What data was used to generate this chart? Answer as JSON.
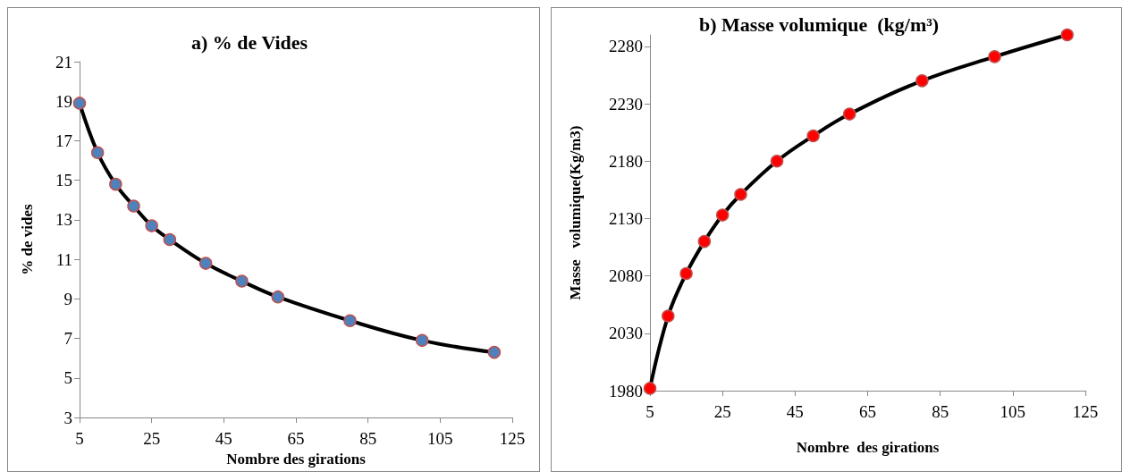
{
  "chart_data": [
    {
      "type": "line",
      "title": "a) % de Vides",
      "xlabel": "Nombre des girations",
      "ylabel": "% de vides",
      "x": [
        5,
        10,
        15,
        20,
        25,
        30,
        40,
        50,
        60,
        80,
        100,
        120
      ],
      "xlim": [
        5,
        125
      ],
      "xticks": [
        5,
        25,
        45,
        65,
        85,
        105,
        125
      ],
      "ylim": [
        3,
        21
      ],
      "yticks": [
        3,
        5,
        7,
        9,
        11,
        13,
        15,
        17,
        19,
        21
      ],
      "marker": "circle",
      "series": [
        {
          "color": "#4f81bd",
          "values": [
            18.9,
            16.4,
            14.8,
            13.7,
            12.7,
            12.0,
            10.8,
            9.9,
            9.1,
            7.9,
            6.9,
            6.3
          ]
        }
      ]
    },
    {
      "type": "line",
      "title": "b) Masse volumique  (kg/m³)",
      "xlabel": "Nombre  des girations",
      "ylabel": "Masse   volumique(Kg/m3)",
      "x": [
        5,
        10,
        15,
        20,
        25,
        30,
        40,
        50,
        60,
        80,
        100,
        120
      ],
      "xlim": [
        5,
        125
      ],
      "xticks": [
        5,
        25,
        45,
        65,
        85,
        105,
        125
      ],
      "ylim": [
        1980,
        2290
      ],
      "yticks": [
        1980,
        2030,
        2080,
        2130,
        2180,
        2230,
        2280
      ],
      "marker": "circle",
      "series": [
        {
          "color": "#ff0000",
          "values": [
            1982,
            2045,
            2082,
            2110,
            2133,
            2151,
            2180,
            2202,
            2221,
            2250,
            2271,
            2290
          ]
        }
      ]
    }
  ]
}
